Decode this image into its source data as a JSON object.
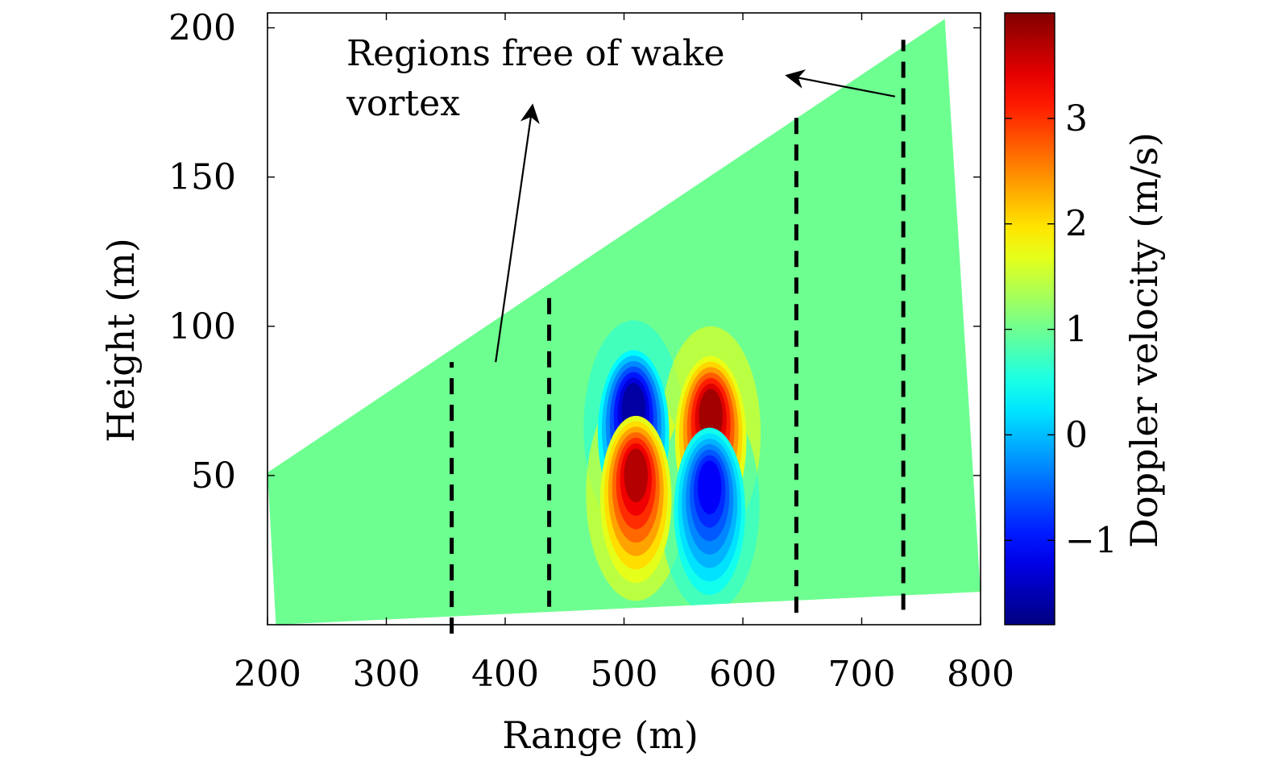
{
  "chart_data": {
    "type": "heatmap",
    "title": "",
    "xlabel": "Range (m)",
    "ylabel": "Height (m)",
    "xlim": [
      200,
      800
    ],
    "ylim": [
      0,
      205
    ],
    "xticks": [
      200,
      300,
      400,
      500,
      600,
      700,
      800
    ],
    "yticks": [
      50,
      100,
      150,
      200
    ],
    "colorbar": {
      "label": "Doppler velocity (m/s)",
      "range": [
        -1.8,
        4.0
      ],
      "ticks": [
        -1,
        0,
        1,
        2,
        3
      ],
      "colormap": "jet"
    },
    "background_value": 1.0,
    "scan_region": {
      "upper_edge": [
        [
          200,
          51
        ],
        [
          770,
          203
        ]
      ],
      "lower_edge": [
        [
          207,
          0
        ],
        [
          800,
          11
        ]
      ],
      "right_edge": [
        [
          770,
          203
        ],
        [
          800,
          11
        ]
      ]
    },
    "vortex_features": [
      {
        "range": 508,
        "height": 72,
        "peak_value": -1.6
      },
      {
        "range": 573,
        "height": 70,
        "peak_value": 3.8
      },
      {
        "range": 510,
        "height": 50,
        "peak_value": 3.7
      },
      {
        "range": 572,
        "height": 46,
        "peak_value": -1.1
      }
    ],
    "dashed_lines": [
      {
        "range": 355,
        "y_from": -3,
        "y_to": 88
      },
      {
        "range": 437,
        "y_from": 6,
        "y_to": 110
      },
      {
        "range": 645,
        "y_from": 4,
        "y_to": 170
      },
      {
        "range": 735,
        "y_from": 5,
        "y_to": 196
      }
    ],
    "annotations": [
      {
        "text_lines": [
          "Regions free of wake",
          "vortex"
        ],
        "arrows": [
          {
            "from": [
              392,
              88
            ],
            "to": [
              423,
              174
            ]
          },
          {
            "from": [
              728,
              177
            ],
            "to": [
              637,
              184
            ]
          }
        ]
      }
    ]
  }
}
